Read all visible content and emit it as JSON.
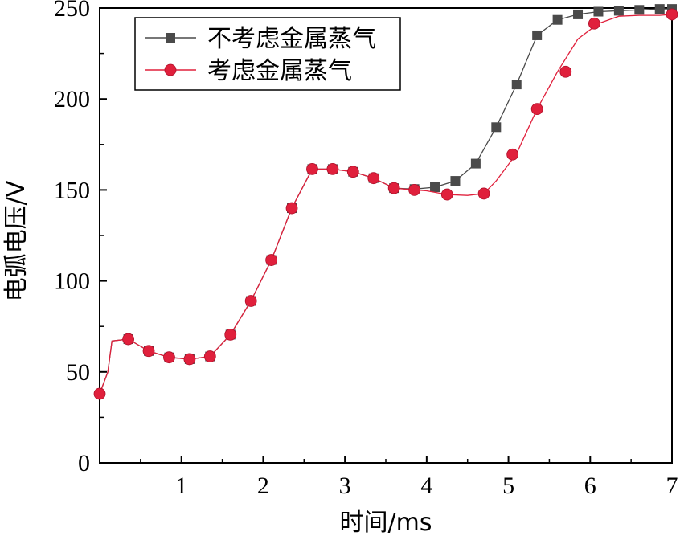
{
  "chart_data": {
    "type": "line",
    "title": "",
    "xlabel": "时间/ms",
    "ylabel": "电弧电压/V",
    "xlim": [
      0,
      7
    ],
    "ylim": [
      0,
      250
    ],
    "xticks": [
      1,
      2,
      3,
      4,
      5,
      6,
      7
    ],
    "yticks": [
      0,
      50,
      100,
      150,
      200,
      250
    ],
    "grid": false,
    "legend_position": "top-left",
    "series": [
      {
        "name": "不考虑金属蒸气",
        "color": "#4a4a4a",
        "marker": "square",
        "x": [
          0.0,
          0.1,
          0.15,
          0.35,
          0.6,
          0.85,
          1.1,
          1.35,
          1.6,
          1.85,
          2.1,
          2.35,
          2.6,
          2.85,
          3.1,
          3.35,
          3.6,
          3.85,
          4.1,
          4.35,
          4.6,
          4.85,
          5.1,
          5.35,
          5.6,
          5.85,
          6.1,
          6.35,
          6.6,
          6.85,
          7.0
        ],
        "y": [
          38,
          50,
          67,
          68,
          61.5,
          58,
          57,
          58.5,
          70.5,
          89,
          111.5,
          140,
          161.5,
          161.5,
          160,
          156.5,
          151,
          150.5,
          151.5,
          155,
          164.5,
          184.5,
          208,
          235,
          243.5,
          246.5,
          248,
          248.5,
          249,
          249.5,
          249.5
        ],
        "marker_x": [
          0.35,
          0.6,
          0.85,
          1.1,
          1.35,
          1.6,
          1.85,
          2.1,
          2.35,
          2.6,
          2.85,
          3.1,
          3.35,
          3.6,
          3.85,
          4.1,
          4.35,
          4.6,
          4.85,
          5.1,
          5.35,
          5.6,
          5.85,
          6.1,
          6.35,
          6.6,
          6.85,
          7.0
        ],
        "marker_y": [
          68,
          61.5,
          58,
          57,
          58.5,
          70.5,
          89,
          111.5,
          140,
          161.5,
          161.5,
          160,
          156.5,
          151,
          150.5,
          151.5,
          155,
          164.5,
          184.5,
          208,
          235,
          243.5,
          246.5,
          248,
          248.5,
          249,
          249.5,
          249.5
        ]
      },
      {
        "name": "考虑金属蒸气",
        "color": "#e0203c",
        "marker": "circle",
        "x": [
          0.0,
          0.1,
          0.15,
          0.35,
          0.6,
          0.85,
          1.1,
          1.35,
          1.6,
          1.85,
          2.1,
          2.35,
          2.6,
          2.85,
          3.1,
          3.35,
          3.6,
          3.85,
          4.0,
          4.25,
          4.5,
          4.7,
          4.85,
          5.1,
          5.35,
          5.6,
          5.85,
          6.1,
          6.35,
          6.6,
          6.85,
          7.0
        ],
        "y": [
          38,
          50,
          67,
          68,
          61.5,
          58,
          57,
          58.5,
          70.5,
          89,
          111.5,
          140,
          161.5,
          161.5,
          160,
          156.5,
          151,
          150,
          149.5,
          147.5,
          147,
          148,
          155,
          170,
          194.5,
          215,
          233,
          241.5,
          245.5,
          246,
          246,
          246.5
        ],
        "marker_x": [
          0.0,
          0.35,
          0.6,
          0.85,
          1.1,
          1.35,
          1.6,
          1.85,
          2.1,
          2.35,
          2.6,
          2.85,
          3.1,
          3.35,
          3.6,
          3.85,
          4.25,
          4.7,
          5.05,
          5.35,
          5.7,
          6.05,
          7.0
        ],
        "marker_y": [
          38,
          68,
          61.5,
          58,
          57,
          58.5,
          70.5,
          89,
          111.5,
          140,
          161.5,
          161.5,
          160,
          156.5,
          151,
          150,
          147.5,
          148,
          169.5,
          194.5,
          215,
          241.5,
          246.5
        ]
      }
    ]
  }
}
